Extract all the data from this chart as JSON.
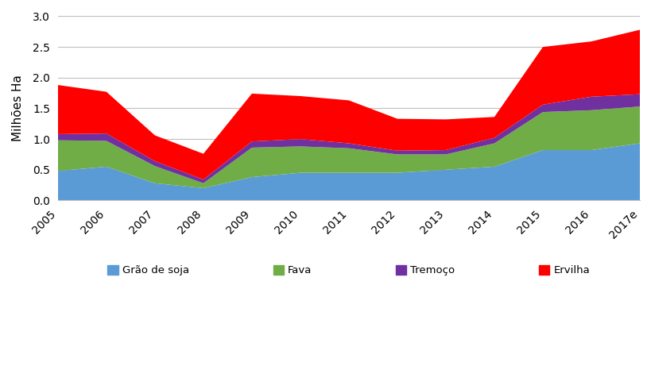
{
  "years": [
    "2005",
    "2006",
    "2007",
    "2008",
    "2009",
    "2010",
    "2011",
    "2012",
    "2013",
    "2014",
    "2015",
    "2016",
    "2017e"
  ],
  "grao_de_soja": [
    0.48,
    0.55,
    0.28,
    0.2,
    0.38,
    0.45,
    0.45,
    0.45,
    0.5,
    0.55,
    0.82,
    0.82,
    0.93
  ],
  "fava": [
    0.5,
    0.42,
    0.28,
    0.08,
    0.48,
    0.43,
    0.4,
    0.3,
    0.25,
    0.38,
    0.62,
    0.65,
    0.6
  ],
  "tremoço": [
    0.1,
    0.12,
    0.08,
    0.06,
    0.1,
    0.12,
    0.08,
    0.06,
    0.07,
    0.09,
    0.12,
    0.22,
    0.2
  ],
  "ervilha": [
    0.8,
    0.68,
    0.42,
    0.42,
    0.78,
    0.7,
    0.7,
    0.52,
    0.5,
    0.34,
    0.94,
    0.9,
    1.05
  ],
  "colors": {
    "grao_de_soja": "#5B9BD5",
    "fava": "#70AD47",
    "tremoço": "#7030A0",
    "ervilha": "#FF0000"
  },
  "ylabel": "Milhões Ha",
  "ylim": [
    0.0,
    3.0
  ],
  "yticks": [
    0.0,
    0.5,
    1.0,
    1.5,
    2.0,
    2.5,
    3.0
  ],
  "legend_labels": [
    "Grão de soja",
    "Fava",
    "Tremoço",
    "Ervilha"
  ],
  "background_color": "#FFFFFF",
  "grid_color": "#BFBFBF"
}
